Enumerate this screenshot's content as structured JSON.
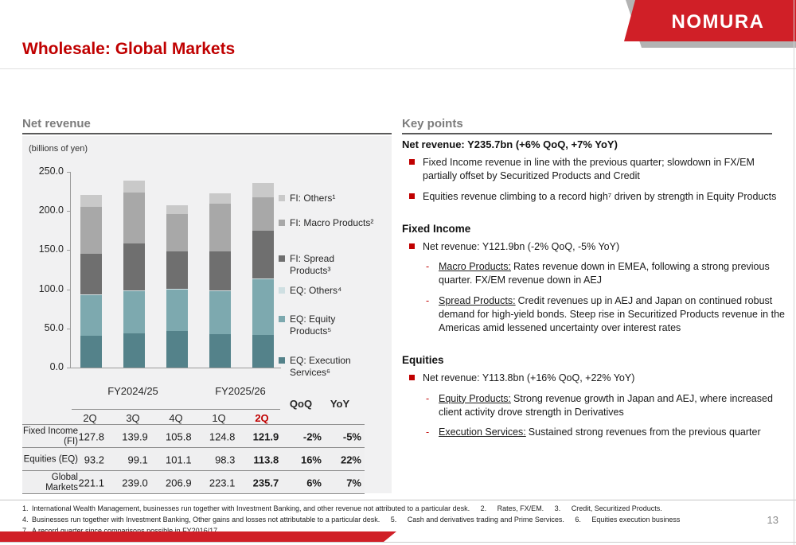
{
  "logo": {
    "text": "NOMURA"
  },
  "title": "Wholesale: Global Markets",
  "left_panel": {
    "heading": "Net revenue",
    "unit_label": "(billions of yen)"
  },
  "chart_data": {
    "type": "bar",
    "stacked": true,
    "title": "Net revenue",
    "ylabel": "billions of yen",
    "ylim": [
      0,
      250
    ],
    "yticks": [
      "0.0",
      "50.0",
      "100.0",
      "150.0",
      "200.0",
      "250.0"
    ],
    "categories": [
      "2Q",
      "3Q",
      "4Q",
      "1Q",
      "2Q"
    ],
    "group_labels": [
      "FY2024/25",
      "FY2025/26"
    ],
    "highlight_category_index": 4,
    "grid": false,
    "legend_position": "right",
    "series": [
      {
        "name": "EQ: Execution Services⁶",
        "color": "#54828a",
        "values": [
          41.0,
          44.0,
          46.5,
          42.5,
          41.5
        ]
      },
      {
        "name": "EQ: Equity Products⁵",
        "color": "#7da9af",
        "values": [
          51.0,
          54.0,
          53.5,
          54.8,
          71.3
        ]
      },
      {
        "name": "EQ: Others⁴",
        "color": "#cfdfe2",
        "values": [
          1.2,
          1.1,
          1.1,
          1.0,
          1.0
        ]
      },
      {
        "name": "FI: Spread Products³",
        "color": "#6f6f6f",
        "values": [
          52.0,
          59.0,
          47.0,
          50.0,
          61.0
        ]
      },
      {
        "name": "FI: Macro Products²",
        "color": "#a8a8a8",
        "values": [
          60.0,
          66.0,
          48.5,
          61.5,
          42.5
        ]
      },
      {
        "name": "FI: Others¹",
        "color": "#c9c9c9",
        "values": [
          15.8,
          14.9,
          10.3,
          13.3,
          18.4
        ]
      }
    ],
    "legend": [
      {
        "lines": [
          "FI: Others¹"
        ],
        "color": "#c9c9c9"
      },
      {
        "lines": [
          "FI: Macro Products²"
        ],
        "color": "#a8a8a8"
      },
      {
        "lines": [
          "FI: Spread",
          "Products³"
        ],
        "color": "#6f6f6f"
      },
      {
        "lines": [
          "EQ: Others⁴"
        ],
        "color": "#cfdfe2"
      },
      {
        "lines": [
          "EQ: Equity",
          "Products⁵"
        ],
        "color": "#7da9af"
      },
      {
        "lines": [
          "EQ: Execution",
          "Services⁶"
        ],
        "color": "#54828a"
      }
    ]
  },
  "table": {
    "col_groups": [
      "FY2024/25",
      "FY2025/26"
    ],
    "quarter_cols": [
      "2Q",
      "3Q",
      "4Q",
      "1Q",
      "2Q"
    ],
    "change_cols": [
      "QoQ",
      "YoY"
    ],
    "highlight_col_index": 4,
    "rows": [
      {
        "label": "Fixed Income (FI)",
        "values": [
          "127.8",
          "139.9",
          "105.8",
          "124.8",
          "121.9"
        ],
        "qoq": "-2%",
        "yoy": "-5%"
      },
      {
        "label": "Equities (EQ)",
        "values": [
          "93.2",
          "99.1",
          "101.1",
          "98.3",
          "113.8"
        ],
        "qoq": "16%",
        "yoy": "22%"
      },
      {
        "label": "Global Markets",
        "values": [
          "221.1",
          "239.0",
          "206.9",
          "223.1",
          "235.7"
        ],
        "qoq": "6%",
        "yoy": "7%"
      }
    ]
  },
  "key_points": {
    "heading": "Key points",
    "summary": "Net revenue: Y235.7bn (+6% QoQ, +7% YoY)",
    "summary_bullets": [
      "Fixed Income revenue in line with the previous quarter; slowdown in FX/EM partially offset by Securitized Products and Credit",
      "Equities revenue climbing to a record high⁷ driven by strength in Equity Products"
    ],
    "sections": [
      {
        "heading": "Fixed Income",
        "bullet": "Net revenue: Y121.9bn (-2% QoQ, -5% YoY)",
        "subs": [
          {
            "label": "Macro Products:",
            "text": "Rates revenue down in EMEA, following a strong previous quarter. FX/EM revenue down in AEJ"
          },
          {
            "label": "Spread Products:",
            "text": "Credit revenues up in AEJ and Japan on continued robust demand for high-yield bonds. Steep rise in Securitized Products revenue in the Americas amid lessened uncertainty over interest rates"
          }
        ]
      },
      {
        "heading": "Equities",
        "bullet": "Net revenue: Y113.8bn (+16% QoQ, +22% YoY)",
        "subs": [
          {
            "label": "Equity Products:",
            "text": "Strong revenue growth in Japan and AEJ, where increased client activity drove strength in Derivatives"
          },
          {
            "label": "Execution Services:",
            "text": "Sustained strong revenues from the previous quarter"
          }
        ]
      }
    ]
  },
  "footnotes": [
    "1. International Wealth Management, businesses run together with Investment Banking, and other revenue not attributed to a particular desk.   2.   Rates, FX/EM.   3.   Credit, Securitized Products.",
    "4. Businesses run together with Investment Banking, Other gains and losses not attributable to a particular desk.   5.   Cash and derivatives trading and Prime Services.   6.   Equities execution business",
    "7. A record quarter since comparisons possible in FY2016/17"
  ],
  "page": {
    "number": "13"
  },
  "colors": {
    "accent_red": "#c00000",
    "logo_red": "#d01f27",
    "heading_gray": "#7c7c7c",
    "panel_bg": "#f1f1f2"
  }
}
